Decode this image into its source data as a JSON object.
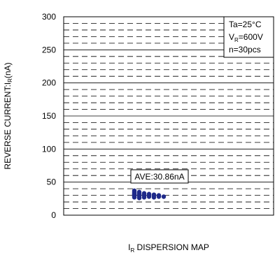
{
  "chart_data": {
    "type": "scatter",
    "title": "",
    "ylabel_main": "REVERSE CURRENT:I",
    "ylabel_sub": "R",
    "ylabel_unit": "(nA)",
    "xlabel_main": "I",
    "xlabel_sub": "R",
    "xlabel_rest": " DISPERSION MAP",
    "ylim": [
      0,
      300
    ],
    "yticks": [
      "0",
      "50",
      "100",
      "150",
      "200",
      "250",
      "300"
    ],
    "grid": true,
    "conditions": {
      "ta": "Ta=25°C",
      "vr_main": "V",
      "vr_sub": "R",
      "vr_rest": "=600V",
      "n": "n=30pcs"
    },
    "average_label": "AVE:30.86nA",
    "average": 30.86,
    "points": [
      {
        "x": 0,
        "y": 37
      },
      {
        "x": 0,
        "y": 36
      },
      {
        "x": 0,
        "y": 35
      },
      {
        "x": 0,
        "y": 34
      },
      {
        "x": 0,
        "y": 33
      },
      {
        "x": 0,
        "y": 32
      },
      {
        "x": 0,
        "y": 31
      },
      {
        "x": 0,
        "y": 30
      },
      {
        "x": 0,
        "y": 29
      },
      {
        "x": 0,
        "y": 28
      },
      {
        "x": 0,
        "y": 27
      },
      {
        "x": 1,
        "y": 35
      },
      {
        "x": 1,
        "y": 33
      },
      {
        "x": 1,
        "y": 31
      },
      {
        "x": 1,
        "y": 29
      },
      {
        "x": 1,
        "y": 27
      },
      {
        "x": 1,
        "y": 26
      },
      {
        "x": 2,
        "y": 33
      },
      {
        "x": 2,
        "y": 31
      },
      {
        "x": 2,
        "y": 29
      },
      {
        "x": 2,
        "y": 27
      },
      {
        "x": 3,
        "y": 32
      },
      {
        "x": 3,
        "y": 30
      },
      {
        "x": 3,
        "y": 28
      },
      {
        "x": 4,
        "y": 31
      },
      {
        "x": 4,
        "y": 29
      },
      {
        "x": 4,
        "y": 27
      },
      {
        "x": 5,
        "y": 30
      },
      {
        "x": 5,
        "y": 28
      },
      {
        "x": 6,
        "y": 28
      }
    ],
    "marker_color": "#1f2a8a"
  }
}
